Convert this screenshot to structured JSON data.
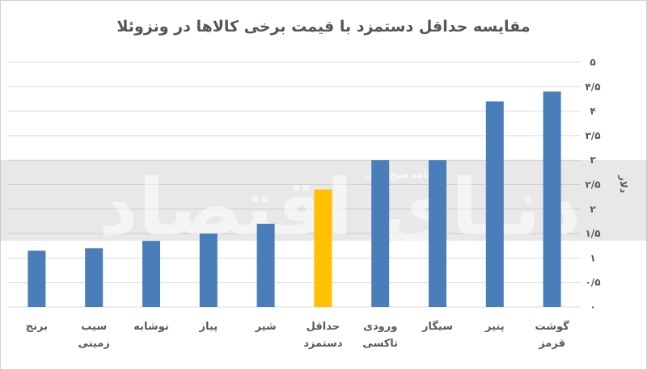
{
  "chart_data": {
    "type": "bar",
    "title": "مقایسه حداقل دستمزد با قیمت برخی کالاها در ونزوئلا",
    "ylabel": "دلار",
    "xlabel": "",
    "ylim": [
      0,
      5
    ],
    "yticks": [
      "۰",
      "۰/۵",
      "۱",
      "۱/۵",
      "۲",
      "۲/۵",
      "۳",
      "۳/۵",
      "۴",
      "۴/۵",
      "۵"
    ],
    "yticks_values": [
      0,
      0.5,
      1,
      1.5,
      2,
      2.5,
      3,
      3.5,
      4,
      4.5,
      5
    ],
    "grid": true,
    "categories": [
      [
        "گوشت",
        "قرمز"
      ],
      [
        "پنیر"
      ],
      [
        "سیگار"
      ],
      [
        "ورودی",
        "تاکسی"
      ],
      [
        "حداقل",
        "دستمزد"
      ],
      [
        "شیر"
      ],
      [
        "پیاز"
      ],
      [
        "نوشابه"
      ],
      [
        "سیب",
        "زمینی"
      ],
      [
        "برنج"
      ]
    ],
    "values": [
      4.4,
      4.2,
      3.0,
      3.0,
      2.4,
      1.7,
      1.5,
      1.35,
      1.2,
      1.15
    ],
    "highlight_index": 4,
    "colors": {
      "bar": "#4a7ebb",
      "highlight": "#ffc000",
      "grid": "#d9d9d9",
      "text": "#595959"
    }
  },
  "watermark": {
    "logo_text": "دنیای اقتصاد",
    "sub_text": "روزنامه صبح ایران"
  }
}
